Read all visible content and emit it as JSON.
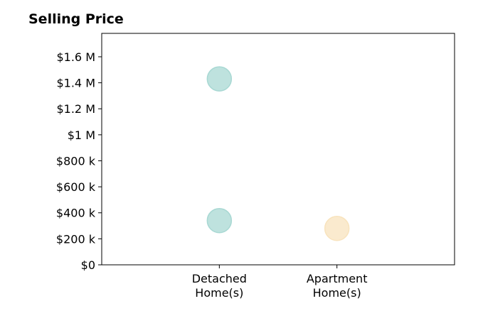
{
  "chart_data": {
    "type": "scatter",
    "title": "Selling Price",
    "xlabel": "",
    "ylabel": "",
    "categories": [
      {
        "line1": "Detached",
        "line2": "Home(s)"
      },
      {
        "line1": "Apartment",
        "line2": "Home(s)"
      }
    ],
    "xlim": [
      0,
      3
    ],
    "ylim": [
      0,
      1780000
    ],
    "yticks": [
      {
        "value": 0,
        "label": "$0"
      },
      {
        "value": 200000,
        "label": "$200 k"
      },
      {
        "value": 400000,
        "label": "$400 k"
      },
      {
        "value": 600000,
        "label": "$600 k"
      },
      {
        "value": 800000,
        "label": "$800 k"
      },
      {
        "value": 1000000,
        "label": "$1 M"
      },
      {
        "value": 1200000,
        "label": "$1.2 M"
      },
      {
        "value": 1400000,
        "label": "$1.4 M"
      },
      {
        "value": 1600000,
        "label": "$1.6 M"
      }
    ],
    "points": [
      {
        "x": 1,
        "y": 1430000,
        "color": "#a8d8d3"
      },
      {
        "x": 1,
        "y": 340000,
        "color": "#a8d8d3"
      },
      {
        "x": 2,
        "y": 280000,
        "color": "#f8e3bd"
      }
    ],
    "grid": false
  }
}
